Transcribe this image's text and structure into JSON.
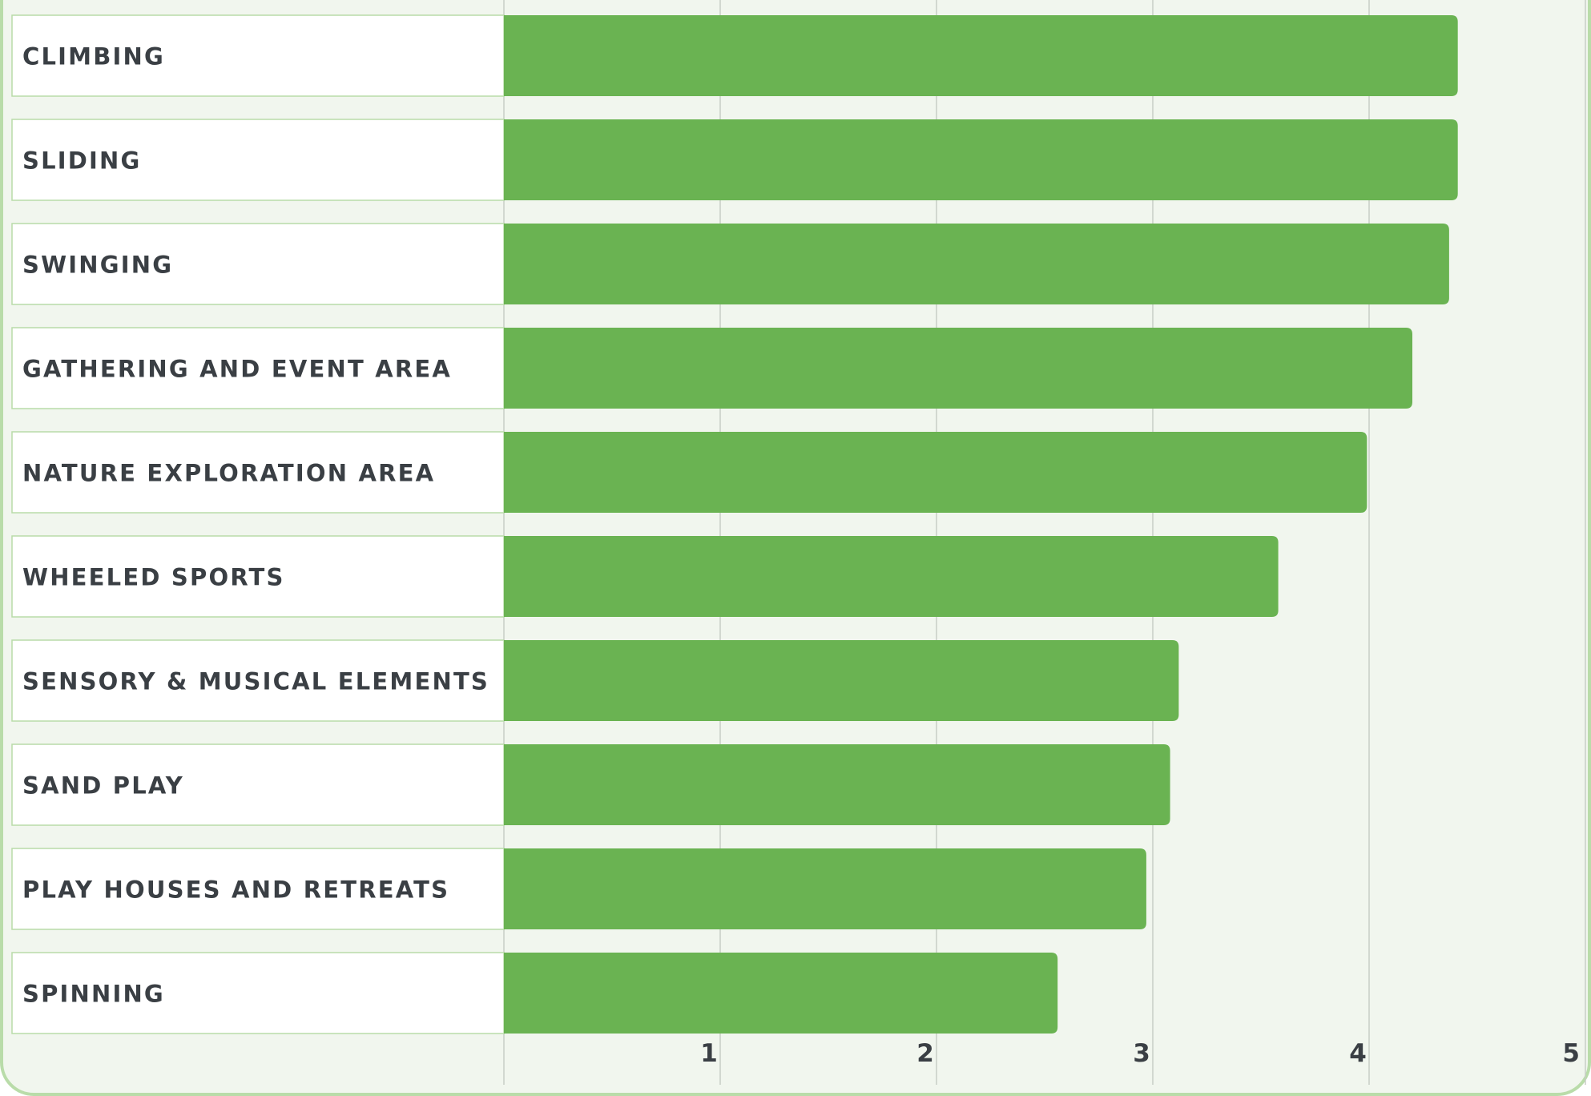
{
  "chart_data": {
    "type": "bar",
    "orientation": "horizontal",
    "categories": [
      "CLIMBING",
      "SLIDING",
      "SWINGING",
      "GATHERING AND EVENT AREA",
      "NATURE EXPLORATION AREA",
      "WHEELED SPORTS",
      "SENSORY & MUSICAL ELEMENTS",
      "SAND PLAY",
      "PLAY HOUSES AND RETREATS",
      "SPINNING"
    ],
    "values": [
      4.41,
      4.41,
      4.37,
      4.2,
      3.99,
      3.58,
      3.12,
      3.08,
      2.97,
      2.56
    ],
    "xlim": [
      0,
      5
    ],
    "xticks": [
      "1",
      "2",
      "3",
      "4",
      "5"
    ],
    "grid": "vertical",
    "legend": "none",
    "colors": {
      "bar": "#6ab352",
      "plot_background": "#f1f6ee",
      "label_background": "#ffffff",
      "border": "#b9dca9",
      "gridline": "#c8cdc6",
      "text": "#3a3f44"
    }
  }
}
